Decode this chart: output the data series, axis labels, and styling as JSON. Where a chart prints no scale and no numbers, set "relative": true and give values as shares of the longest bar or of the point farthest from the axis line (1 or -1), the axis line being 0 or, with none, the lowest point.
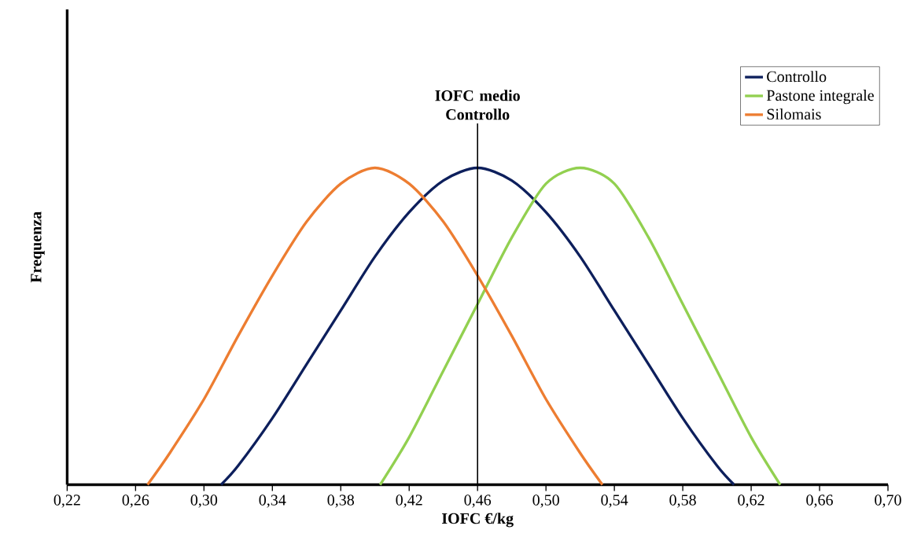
{
  "chart_data": {
    "type": "line",
    "relative": true,
    "xlabel": "IOFC €/kg",
    "ylabel": "Frequenza",
    "xlim": [
      0.22,
      0.7
    ],
    "xticks": [
      {
        "value": 0.22,
        "label": "0,22"
      },
      {
        "value": 0.26,
        "label": "0,26"
      },
      {
        "value": 0.3,
        "label": "0,30"
      },
      {
        "value": 0.34,
        "label": "0,34"
      },
      {
        "value": 0.38,
        "label": "0,38"
      },
      {
        "value": 0.42,
        "label": "0,42"
      },
      {
        "value": 0.46,
        "label": "0,46"
      },
      {
        "value": 0.5,
        "label": "0,50"
      },
      {
        "value": 0.54,
        "label": "0,54"
      },
      {
        "value": 0.58,
        "label": "0,58"
      },
      {
        "value": 0.62,
        "label": "0,62"
      },
      {
        "value": 0.66,
        "label": "0,66"
      },
      {
        "value": 0.7,
        "label": "0,70"
      }
    ],
    "legend": "top right",
    "grid": false,
    "marker": "none",
    "line_style": "solid",
    "ref_lines": [
      {
        "axis": "x",
        "value": 0.46,
        "label": "IOFC medio Controllo",
        "color": "#000000"
      }
    ],
    "series": [
      {
        "name": "Controllo",
        "color": "#0d1f5c",
        "x": [
          0.31,
          0.32,
          0.34,
          0.36,
          0.38,
          0.4,
          0.42,
          0.44,
          0.46,
          0.48,
          0.5,
          0.52,
          0.54,
          0.56,
          0.58,
          0.6,
          0.61
        ],
        "values": [
          0,
          0.06,
          0.21,
          0.38,
          0.55,
          0.72,
          0.86,
          0.96,
          1,
          0.96,
          0.86,
          0.72,
          0.55,
          0.38,
          0.21,
          0.06,
          0
        ]
      },
      {
        "name": "Pastone integrale",
        "color": "#92d050",
        "x": [
          0.403,
          0.42,
          0.44,
          0.46,
          0.48,
          0.5,
          0.52,
          0.54,
          0.56,
          0.58,
          0.6,
          0.62,
          0.637
        ],
        "values": [
          0,
          0.15,
          0.36,
          0.57,
          0.78,
          0.95,
          1,
          0.95,
          0.78,
          0.57,
          0.36,
          0.15,
          0
        ]
      },
      {
        "name": "Silomais",
        "color": "#ed7d31",
        "x": [
          0.267,
          0.28,
          0.3,
          0.32,
          0.34,
          0.36,
          0.38,
          0.4,
          0.42,
          0.44,
          0.46,
          0.48,
          0.5,
          0.52,
          0.533
        ],
        "values": [
          0,
          0.1,
          0.27,
          0.47,
          0.66,
          0.83,
          0.95,
          1,
          0.95,
          0.83,
          0.66,
          0.47,
          0.27,
          0.1,
          0
        ]
      }
    ]
  }
}
